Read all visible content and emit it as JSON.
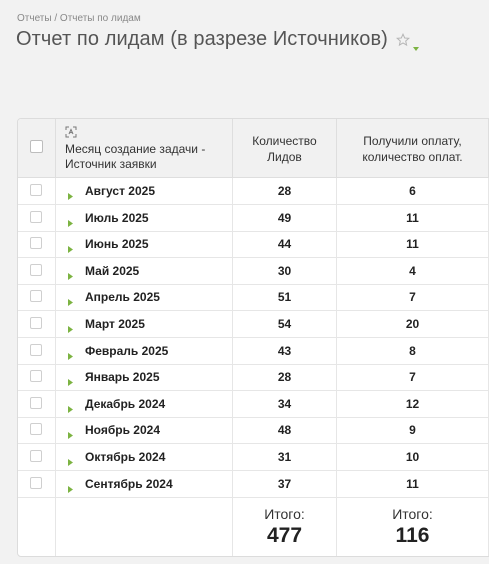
{
  "breadcrumb": {
    "parent": "Отчеты",
    "separator": " / ",
    "current": "Отчеты по лидам"
  },
  "page": {
    "title": "Отчет по лидам (в разрезе Источников)",
    "star_icon": "star-outline-icon",
    "caret_icon": "caret-down-icon",
    "accent_color": "#7cb342"
  },
  "table": {
    "columns": {
      "name": "Месяц создание задачи - Источник заявки",
      "leads": "Количество Лидов",
      "paid": "Получили оплату, количество оплат."
    },
    "rows": [
      {
        "month": "Август 2025",
        "leads": "28",
        "paid": "6"
      },
      {
        "month": "Июль 2025",
        "leads": "49",
        "paid": "11"
      },
      {
        "month": "Июнь 2025",
        "leads": "44",
        "paid": "11"
      },
      {
        "month": "Май 2025",
        "leads": "30",
        "paid": "4"
      },
      {
        "month": "Апрель 2025",
        "leads": "51",
        "paid": "7"
      },
      {
        "month": "Март 2025",
        "leads": "54",
        "paid": "20"
      },
      {
        "month": "Февраль 2025",
        "leads": "43",
        "paid": "8"
      },
      {
        "month": "Январь 2025",
        "leads": "28",
        "paid": "7"
      },
      {
        "month": "Декабрь 2024",
        "leads": "34",
        "paid": "12"
      },
      {
        "month": "Ноябрь 2024",
        "leads": "48",
        "paid": "9"
      },
      {
        "month": "Октябрь 2024",
        "leads": "31",
        "paid": "10"
      },
      {
        "month": "Сентябрь 2024",
        "leads": "37",
        "paid": "11"
      }
    ],
    "totals": {
      "label": "Итого:",
      "leads": "477",
      "paid": "116"
    }
  }
}
